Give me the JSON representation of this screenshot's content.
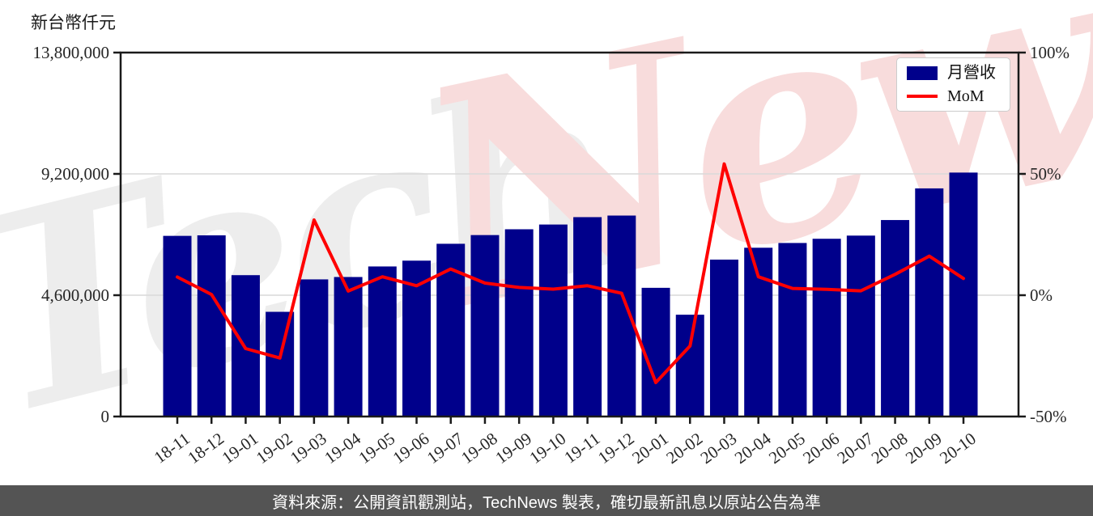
{
  "header": {
    "unit_label": "新台幣仟元"
  },
  "legend": {
    "bar_label": "月營收",
    "line_label": "MoM"
  },
  "footer": {
    "text": "資料來源：公開資訊觀測站，TechNews 製表，確切最新訊息以原站公告為準"
  },
  "watermark": {
    "part1": "Tech",
    "part2": "News"
  },
  "colors": {
    "bar": "#00008B",
    "line": "#FF0000",
    "grid": "#d9d9d9",
    "axis": "#1a1a1a",
    "tick_label": "#262626",
    "footer_bg": "#545454",
    "footer_text": "#ffffff",
    "watermark_gray": "#ededed",
    "watermark_pink": "#f8dcdc"
  },
  "chart_data": {
    "type": "combo",
    "title": "",
    "categories": [
      "18-11",
      "18-12",
      "19-01",
      "19-02",
      "19-03",
      "19-04",
      "19-05",
      "19-06",
      "19-07",
      "19-08",
      "19-09",
      "19-10",
      "19-11",
      "19-12",
      "20-01",
      "20-02",
      "20-03",
      "20-04",
      "20-05",
      "20-06",
      "20-07",
      "20-08",
      "20-09",
      "20-10"
    ],
    "series": [
      {
        "name": "月營收",
        "type": "bar",
        "axis": "left",
        "values": [
          6850000,
          6870000,
          5360000,
          3970000,
          5200000,
          5290000,
          5690000,
          5910000,
          6550000,
          6880000,
          7100000,
          7280000,
          7560000,
          7620000,
          4880000,
          3860000,
          5950000,
          6400000,
          6580000,
          6740000,
          6860000,
          7450000,
          8650000,
          9250000
        ]
      },
      {
        "name": "MoM",
        "type": "line",
        "axis": "right",
        "values": [
          7.5,
          0.3,
          -22.0,
          -25.9,
          31.0,
          1.7,
          7.6,
          3.9,
          10.8,
          5.0,
          3.2,
          2.5,
          3.9,
          0.8,
          -36.0,
          -20.9,
          54.1,
          7.6,
          2.8,
          2.4,
          1.8,
          8.6,
          16.1,
          6.9
        ]
      }
    ],
    "left_axis": {
      "label": "新台幣仟元",
      "ticks": [
        0,
        4600000,
        9200000,
        13800000
      ],
      "range": [
        0,
        13800000
      ]
    },
    "right_axis": {
      "ticks": [
        -50,
        0,
        50,
        100
      ],
      "range": [
        -50,
        100
      ],
      "unit": "%"
    },
    "grid": "horizontal",
    "legend_position": "top-right",
    "xlabel": "",
    "ylabel": "新台幣仟元"
  }
}
